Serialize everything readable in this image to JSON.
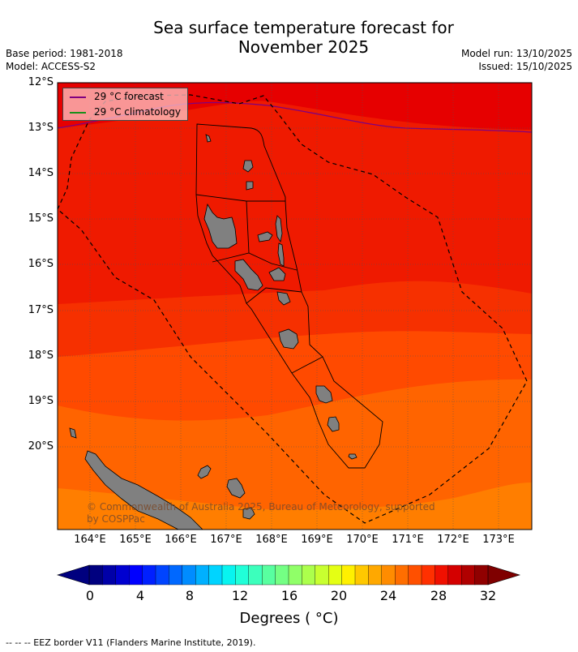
{
  "title_line1": "Sea surface temperature forecast for",
  "title_line2": "November 2025",
  "base_period": "Base period: 1981-2018",
  "model": "Model: ACCESS-S2",
  "model_run": "Model run: 13/10/2025",
  "issued": "Issued: 15/10/2025",
  "lat_labels": [
    "12°S",
    "13°S",
    "14°S",
    "15°S",
    "16°S",
    "17°S",
    "18°S",
    "19°S",
    "20°S"
  ],
  "lon_labels": [
    "164°E",
    "165°E",
    "166°E",
    "167°E",
    "168°E",
    "169°E",
    "170°E",
    "171°E",
    "172°E",
    "173°E"
  ],
  "legend": {
    "forecast_label": "29 °C  forecast",
    "climatology_label": "29 °C  climatology",
    "forecast_color": "#800080",
    "climatology_color": "#1a8f1a"
  },
  "copyright": "© Commonwealth of Australia 2025, Bureau of Meteorology, supported",
  "copyright_line2": "by COSPPac",
  "colorbar": {
    "ticks": [
      "0",
      "4",
      "8",
      "12",
      "16",
      "20",
      "24",
      "28",
      "32"
    ],
    "label": "Degrees ( °C)",
    "colors": [
      "#00007f",
      "#0000a8",
      "#0000d0",
      "#0000ff",
      "#0020ff",
      "#0044ff",
      "#0068ff",
      "#008cff",
      "#00b0ff",
      "#00d4ff",
      "#08f4f0",
      "#20ffd8",
      "#3cffbc",
      "#58ffa0",
      "#74ff84",
      "#90ff68",
      "#acff4c",
      "#c8ff30",
      "#e4ff14",
      "#fff000",
      "#ffc800",
      "#ffa800",
      "#ff8c00",
      "#ff6e00",
      "#ff5000",
      "#ff3000",
      "#f01000",
      "#d40000",
      "#b00000",
      "#900000"
    ],
    "under_color": "#00007f",
    "over_color": "#7f0000"
  },
  "sst_bands": [
    "#e60000",
    "#ef1a00",
    "#f63000",
    "#ff4a00",
    "#ff6400",
    "#ff7e00"
  ],
  "footnote": "--  --  -- EEZ border V11 (Flanders Marine Institute, 2019)."
}
